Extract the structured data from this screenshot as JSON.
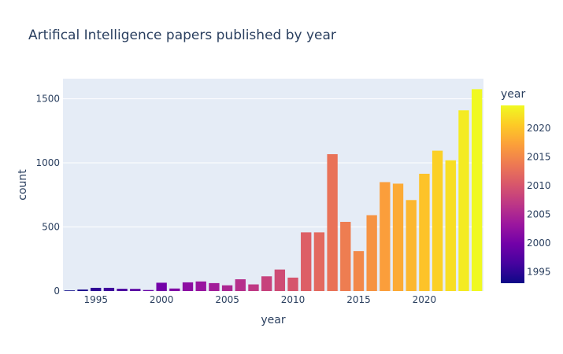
{
  "chart_data": {
    "type": "bar",
    "title": "Artifical Intelligence papers published by year",
    "xlabel": "year",
    "ylabel": "count",
    "colorbar_title": "year",
    "x": [
      1993,
      1994,
      1995,
      1996,
      1997,
      1998,
      1999,
      2000,
      2001,
      2002,
      2003,
      2004,
      2005,
      2006,
      2007,
      2008,
      2009,
      2010,
      2011,
      2012,
      2013,
      2014,
      2015,
      2016,
      2017,
      2018,
      2019,
      2020,
      2021,
      2022,
      2023,
      2024
    ],
    "values": [
      5,
      12,
      25,
      25,
      18,
      17,
      8,
      65,
      20,
      68,
      75,
      62,
      45,
      92,
      52,
      115,
      168,
      105,
      458,
      458,
      1068,
      540,
      312,
      592,
      850,
      838,
      710,
      915,
      1095,
      1020,
      1410,
      1575
    ],
    "xlim": [
      1992.5,
      2024.5
    ],
    "ylim": [
      0,
      1657
    ],
    "x_ticks": [
      "1995",
      "2000",
      "2005",
      "2010",
      "2015",
      "2020"
    ],
    "y_ticks": [
      "0",
      "500",
      "1000",
      "1500"
    ],
    "colorbar_ticks": [
      "1995",
      "2000",
      "2005",
      "2010",
      "2015",
      "2020"
    ],
    "colorscale": [
      "#0d0887",
      "#46039f",
      "#7201a8",
      "#9c179e",
      "#bd3786",
      "#d8576b",
      "#ed7953",
      "#fb9f3a",
      "#fdca26",
      "#f0f921"
    ],
    "plot_bg": "#e5ecf6",
    "grid": true
  }
}
